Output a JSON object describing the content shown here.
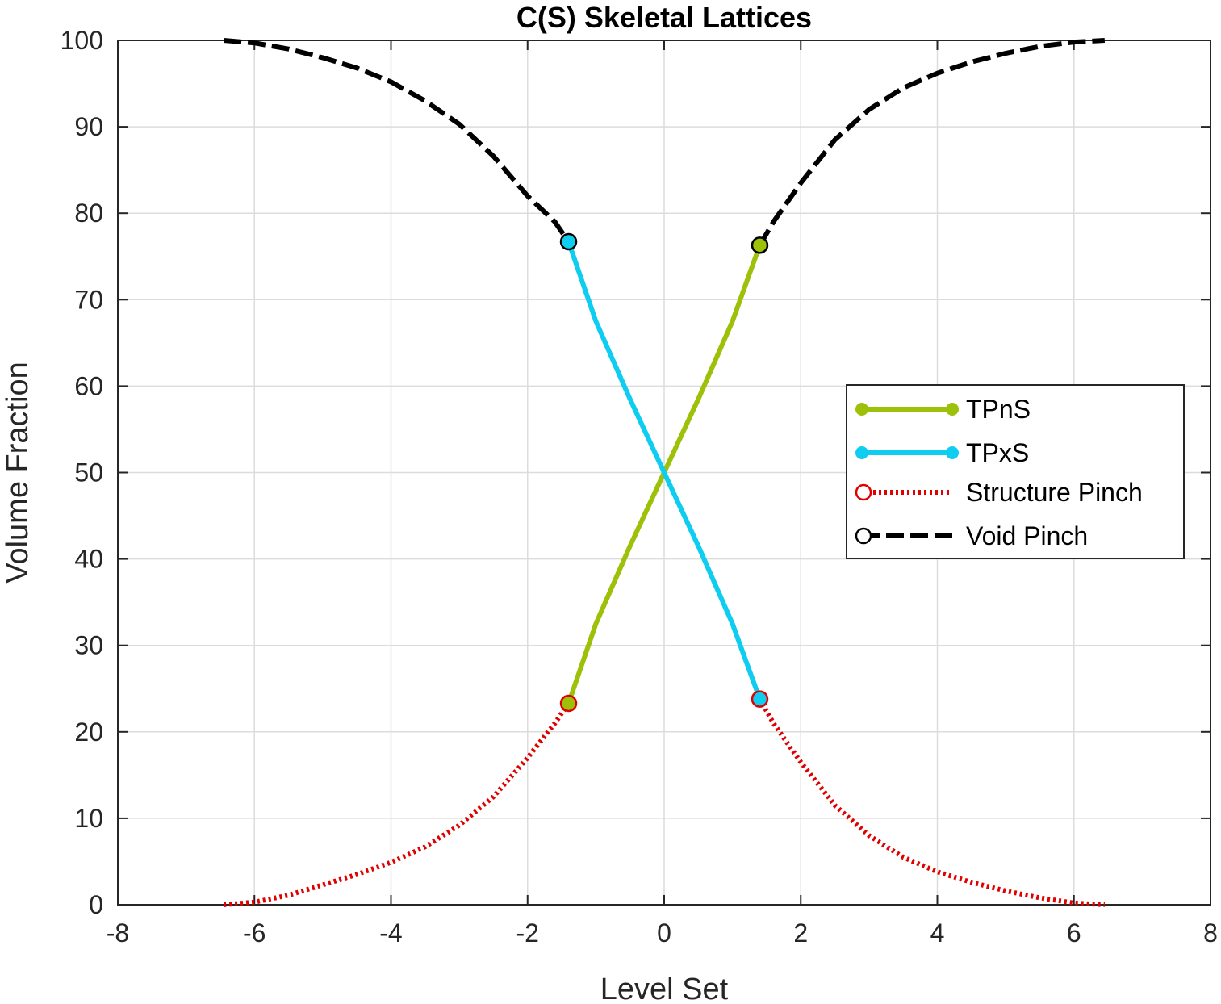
{
  "chart_data": {
    "type": "line",
    "title": "C(S) Skeletal Lattices",
    "xlabel": "Level Set",
    "ylabel": "Volume Fraction",
    "xlim": [
      -8,
      8
    ],
    "ylim": [
      0,
      100
    ],
    "xticks": [
      -8,
      -6,
      -4,
      -2,
      0,
      2,
      4,
      6,
      8
    ],
    "yticks": [
      0,
      10,
      20,
      30,
      40,
      50,
      60,
      70,
      80,
      90,
      100
    ],
    "grid": true,
    "legend_position": "right",
    "series": [
      {
        "name": "TPnS",
        "color": "#9cc108",
        "style": "solid",
        "marker": "filled-circle",
        "x": [
          -1.4,
          -1.0,
          -0.5,
          0.0,
          0.5,
          1.0,
          1.4
        ],
        "y": [
          23.3,
          32.5,
          41.5,
          50.0,
          58.5,
          67.5,
          76.3
        ],
        "endpoint_markers": [
          {
            "x": -1.4,
            "y": 23.3,
            "edge": "#e00000"
          },
          {
            "x": 1.4,
            "y": 76.3,
            "edge": "#000000"
          }
        ]
      },
      {
        "name": "TPxS",
        "color": "#0fcdf0",
        "style": "solid",
        "marker": "filled-circle",
        "x": [
          -1.4,
          -1.0,
          -0.5,
          0.0,
          0.5,
          1.0,
          1.4
        ],
        "y": [
          76.7,
          67.5,
          58.5,
          50.0,
          41.5,
          32.5,
          23.8
        ],
        "endpoint_markers": [
          {
            "x": -1.4,
            "y": 76.7,
            "edge": "#000000"
          },
          {
            "x": 1.4,
            "y": 23.8,
            "edge": "#e00000"
          }
        ]
      },
      {
        "name": "Structure Pinch",
        "color": "#e00000",
        "style": "dotted",
        "marker": "open-circle",
        "segments": [
          {
            "x": [
              -6.45,
              -6.0,
              -5.5,
              -5.0,
              -4.5,
              -4.0,
              -3.5,
              -3.0,
              -2.5,
              -2.0,
              -1.6,
              -1.4
            ],
            "y": [
              0.0,
              0.3,
              1.1,
              2.3,
              3.5,
              4.9,
              6.7,
              9.2,
              12.5,
              17.0,
              21.0,
              23.3
            ]
          },
          {
            "x": [
              1.4,
              1.6,
              2.0,
              2.5,
              3.0,
              3.5,
              4.0,
              4.5,
              5.0,
              5.5,
              6.0,
              6.45
            ],
            "y": [
              23.8,
              21.0,
              16.5,
              11.5,
              8.0,
              5.5,
              3.8,
              2.6,
              1.6,
              0.8,
              0.2,
              0.0
            ]
          }
        ]
      },
      {
        "name": "Void Pinch",
        "color": "#000000",
        "style": "dashed",
        "marker": "open-circle",
        "segments": [
          {
            "x": [
              -6.45,
              -6.0,
              -5.5,
              -5.0,
              -4.5,
              -4.0,
              -3.5,
              -3.0,
              -2.5,
              -2.0,
              -1.6,
              -1.4
            ],
            "y": [
              100.0,
              99.7,
              99.0,
              98.0,
              96.8,
              95.2,
              93.0,
              90.3,
              86.6,
              82.0,
              79.0,
              76.7
            ]
          },
          {
            "x": [
              1.4,
              1.6,
              2.0,
              2.5,
              3.0,
              3.5,
              4.0,
              4.5,
              5.0,
              5.5,
              6.0,
              6.45
            ],
            "y": [
              76.3,
              79.0,
              83.5,
              88.5,
              92.0,
              94.5,
              96.2,
              97.5,
              98.5,
              99.3,
              99.8,
              100.0
            ]
          }
        ]
      }
    ]
  }
}
